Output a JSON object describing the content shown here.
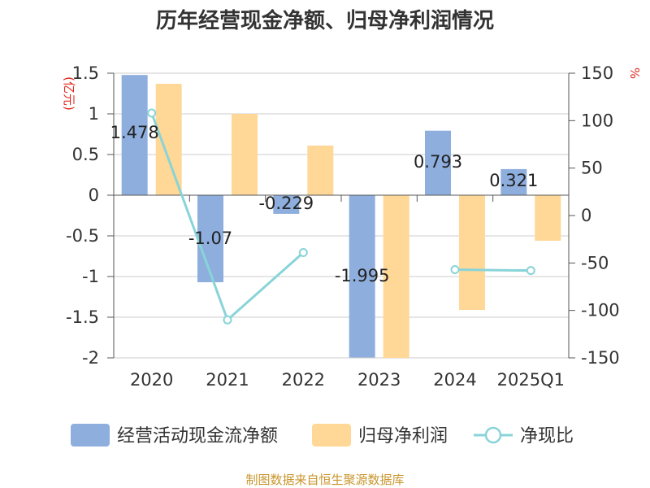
{
  "chart_data": {
    "type": "bar",
    "title": "历年经营现金净额、归母净利润情况",
    "categories": [
      "2020",
      "2021",
      "2022",
      "2023",
      "2024",
      "2025Q1"
    ],
    "y_left_unit": "(亿元)",
    "y_right_unit": "%",
    "ylim_left": [
      -2,
      1.5
    ],
    "ylim_right": [
      -150,
      150
    ],
    "y_left_ticks": [
      "1.5",
      "1",
      "0.5",
      "0",
      "-0.5",
      "-1",
      "-1.5",
      "-2"
    ],
    "y_right_ticks": [
      "150",
      "100",
      "50",
      "0",
      "-50",
      "-100",
      "-150"
    ],
    "series": [
      {
        "name": "经营活动现金流净额",
        "type": "bar",
        "axis": "left",
        "color": "#8eaede",
        "values": [
          1.478,
          -1.07,
          -0.229,
          -1.995,
          0.793,
          0.321
        ],
        "labels": [
          "1.478",
          "-1.07",
          "-0.229",
          "-1.995",
          "0.793",
          "0.321"
        ]
      },
      {
        "name": "归母净利润",
        "type": "bar",
        "axis": "left",
        "color": "#ffd796",
        "values": [
          1.37,
          1.0,
          0.61,
          -2.0,
          -1.41,
          -0.56
        ]
      },
      {
        "name": "净现比",
        "type": "line",
        "axis": "right",
        "color": "#88d4d8",
        "values": [
          108,
          -110,
          -39,
          null,
          -57,
          -58
        ]
      }
    ],
    "grid": true,
    "legend_position": "bottom"
  },
  "source_text": "制图数据来自恒生聚源数据库"
}
